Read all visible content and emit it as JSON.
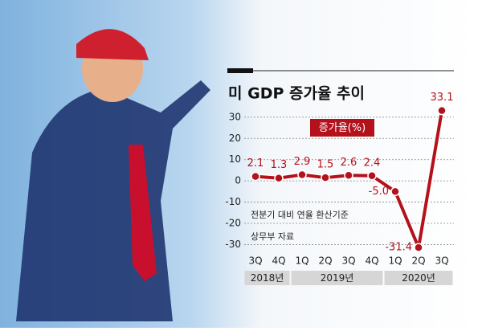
{
  "chart_data": {
    "type": "line",
    "title": "미 GDP 증가율 추이",
    "categories": [
      "3Q",
      "4Q",
      "1Q",
      "2Q",
      "3Q",
      "4Q",
      "1Q",
      "2Q",
      "3Q"
    ],
    "year_groups": [
      {
        "label": "2018년",
        "span": 2
      },
      {
        "label": "2019년",
        "span": 4
      },
      {
        "label": "2020년",
        "span": 3
      }
    ],
    "series": [
      {
        "name": "증가율(%)",
        "color": "#b3121c",
        "values": [
          2.1,
          1.3,
          2.9,
          1.5,
          2.6,
          2.4,
          -5.0,
          -31.4,
          33.1
        ],
        "value_labels": [
          "2.1",
          "1.3",
          "2.9",
          "1.5",
          "2.6",
          "2.4",
          "-5.0",
          "-31.4",
          "33.1"
        ]
      }
    ],
    "ylim": [
      -34,
      36
    ],
    "yticks": [
      -30,
      -20,
      -10,
      0,
      10,
      20,
      30
    ],
    "grid": true,
    "notes": [
      "전분기 대비 연율 환산기준",
      "상무부 자료"
    ]
  }
}
